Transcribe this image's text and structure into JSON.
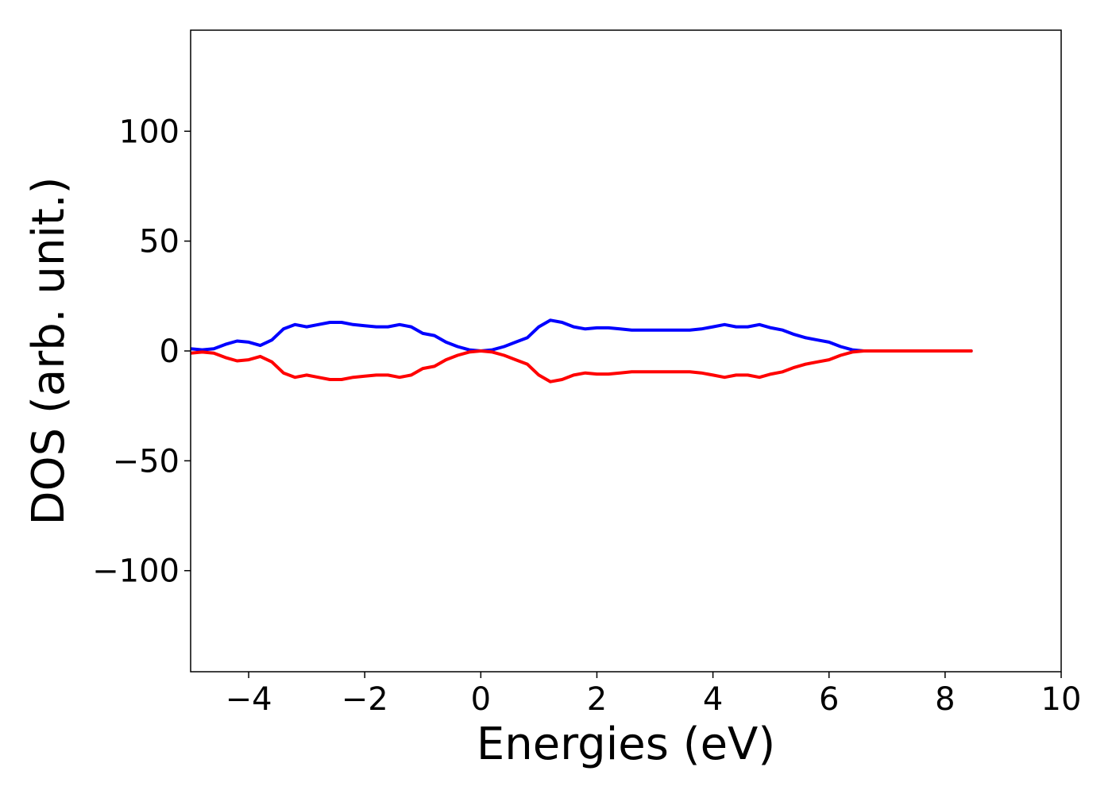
{
  "chart_data": {
    "type": "line",
    "title": "",
    "xlabel": "Energies (eV)",
    "ylabel": "DOS (arb. unit.)",
    "xlim": [
      -5,
      10
    ],
    "ylim": [
      -146,
      146
    ],
    "grid": false,
    "xticks": [
      -4,
      -2,
      0,
      2,
      4,
      6,
      8,
      10
    ],
    "xtick_labels": [
      "−4",
      "−2",
      "0",
      "2",
      "4",
      "6",
      "8",
      "10"
    ],
    "yticks": [
      100,
      50,
      0,
      -50,
      -100
    ],
    "ytick_labels": [
      "100",
      "50",
      "0",
      "−50",
      "−100"
    ],
    "series": [
      {
        "color": "#0000ff",
        "x": [
          -5.0,
          -4.8,
          -4.6,
          -4.4,
          -4.2,
          -4.0,
          -3.8,
          -3.6,
          -3.4,
          -3.2,
          -3.0,
          -2.8,
          -2.6,
          -2.4,
          -2.2,
          -2.0,
          -1.8,
          -1.6,
          -1.4,
          -1.2,
          -1.0,
          -0.8,
          -0.6,
          -0.4,
          -0.2,
          0.0,
          0.2,
          0.4,
          0.6,
          0.8,
          1.0,
          1.2,
          1.4,
          1.6,
          1.8,
          2.0,
          2.2,
          2.4,
          2.6,
          2.8,
          3.0,
          3.2,
          3.4,
          3.6,
          3.8,
          4.0,
          4.2,
          4.4,
          4.6,
          4.8,
          5.0,
          5.2,
          5.4,
          5.6,
          5.8,
          6.0,
          6.2,
          6.4,
          6.6,
          6.8,
          7.0,
          7.5,
          8.0,
          8.45
        ],
        "y": [
          1,
          0.5,
          1,
          3,
          4.5,
          4,
          2.5,
          5,
          10,
          12,
          11,
          12,
          13,
          13,
          12,
          11.5,
          11,
          11,
          12,
          11,
          8,
          7,
          4,
          2,
          0.5,
          0,
          0.5,
          2,
          4,
          6,
          11,
          14,
          13,
          11,
          10,
          10.5,
          10.5,
          10,
          9.5,
          9.5,
          9.5,
          9.5,
          9.5,
          9.5,
          10,
          11,
          12,
          11,
          11,
          12,
          10.5,
          9.5,
          7.5,
          6,
          5,
          4,
          2,
          0.5,
          0,
          0,
          0,
          0,
          0,
          0
        ]
      },
      {
        "color": "#ff0000",
        "x": [
          -5.0,
          -4.8,
          -4.6,
          -4.4,
          -4.2,
          -4.0,
          -3.8,
          -3.6,
          -3.4,
          -3.2,
          -3.0,
          -2.8,
          -2.6,
          -2.4,
          -2.2,
          -2.0,
          -1.8,
          -1.6,
          -1.4,
          -1.2,
          -1.0,
          -0.8,
          -0.6,
          -0.4,
          -0.2,
          0.0,
          0.2,
          0.4,
          0.6,
          0.8,
          1.0,
          1.2,
          1.4,
          1.6,
          1.8,
          2.0,
          2.2,
          2.4,
          2.6,
          2.8,
          3.0,
          3.2,
          3.4,
          3.6,
          3.8,
          4.0,
          4.2,
          4.4,
          4.6,
          4.8,
          5.0,
          5.2,
          5.4,
          5.6,
          5.8,
          6.0,
          6.2,
          6.4,
          6.6,
          6.8,
          7.0,
          7.5,
          8.0,
          8.45
        ],
        "y": [
          -1,
          -0.5,
          -1,
          -3,
          -4.5,
          -4,
          -2.5,
          -5,
          -10,
          -12,
          -11,
          -12,
          -13,
          -13,
          -12,
          -11.5,
          -11,
          -11,
          -12,
          -11,
          -8,
          -7,
          -4,
          -2,
          -0.5,
          0,
          -0.5,
          -2,
          -4,
          -6,
          -11,
          -14,
          -13,
          -11,
          -10,
          -10.5,
          -10.5,
          -10,
          -9.5,
          -9.5,
          -9.5,
          -9.5,
          -9.5,
          -9.5,
          -10,
          -11,
          -12,
          -11,
          -11,
          -12,
          -10.5,
          -9.5,
          -7.5,
          -6,
          -5,
          -4,
          -2,
          -0.5,
          0,
          0,
          0,
          0,
          0,
          0
        ]
      }
    ]
  }
}
